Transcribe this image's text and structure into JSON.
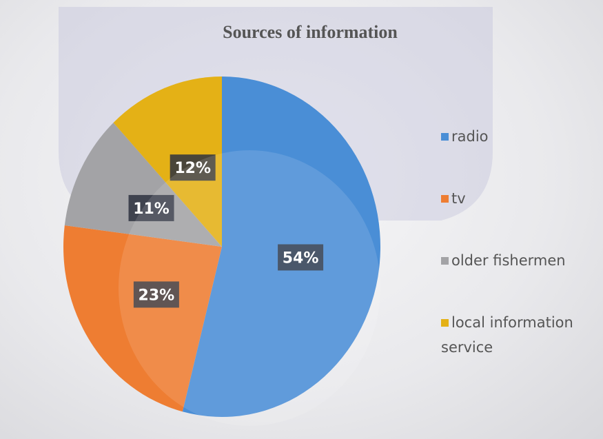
{
  "chart_data": {
    "type": "pie",
    "title": "Sources of information",
    "categories": [
      "radio",
      "tv",
      "older fishermen",
      "local information service"
    ],
    "values": [
      54,
      23,
      11,
      12
    ],
    "value_labels": [
      "54%",
      "23%",
      "11%",
      "12%"
    ],
    "colors": [
      "#4a8ed6",
      "#ee7d32",
      "#a3a3a6",
      "#e4b116"
    ],
    "legend": "right"
  }
}
